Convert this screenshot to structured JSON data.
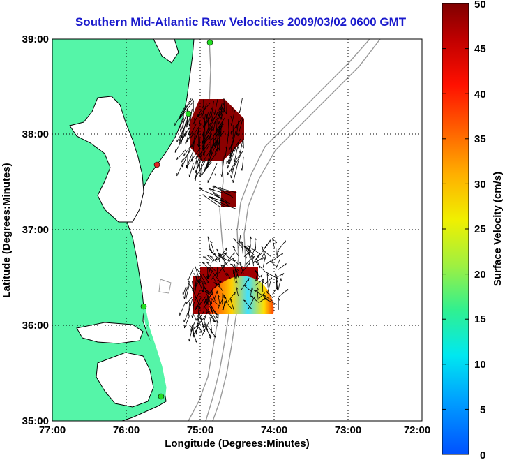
{
  "title": "Southern Mid-Atlantic Raw Velocities 2009/03/02 0600 GMT",
  "x_axis": {
    "label": "Longitude (Degrees:Minutes)",
    "ticks": [
      "77:00",
      "76:00",
      "75:00",
      "74:00",
      "73:00",
      "72:00"
    ]
  },
  "y_axis": {
    "label": "Latitude (Degrees:Minutes)",
    "ticks": [
      "39:00",
      "38:00",
      "37:00",
      "36:00",
      "35:00"
    ]
  },
  "colorbar": {
    "label": "Surface Velocity (cm/s)",
    "ticks": [
      "50",
      "45",
      "40",
      "35",
      "30",
      "25",
      "20",
      "15",
      "10",
      "5",
      "0"
    ],
    "min": 0,
    "max": 50
  },
  "colors": {
    "land": "#55f5a8",
    "water": "#ffffff",
    "title": "#1a1acc",
    "bathymetry": "#999999",
    "station": "#22dd22",
    "station_alert": "#dd2222"
  },
  "grid": "dotted"
}
